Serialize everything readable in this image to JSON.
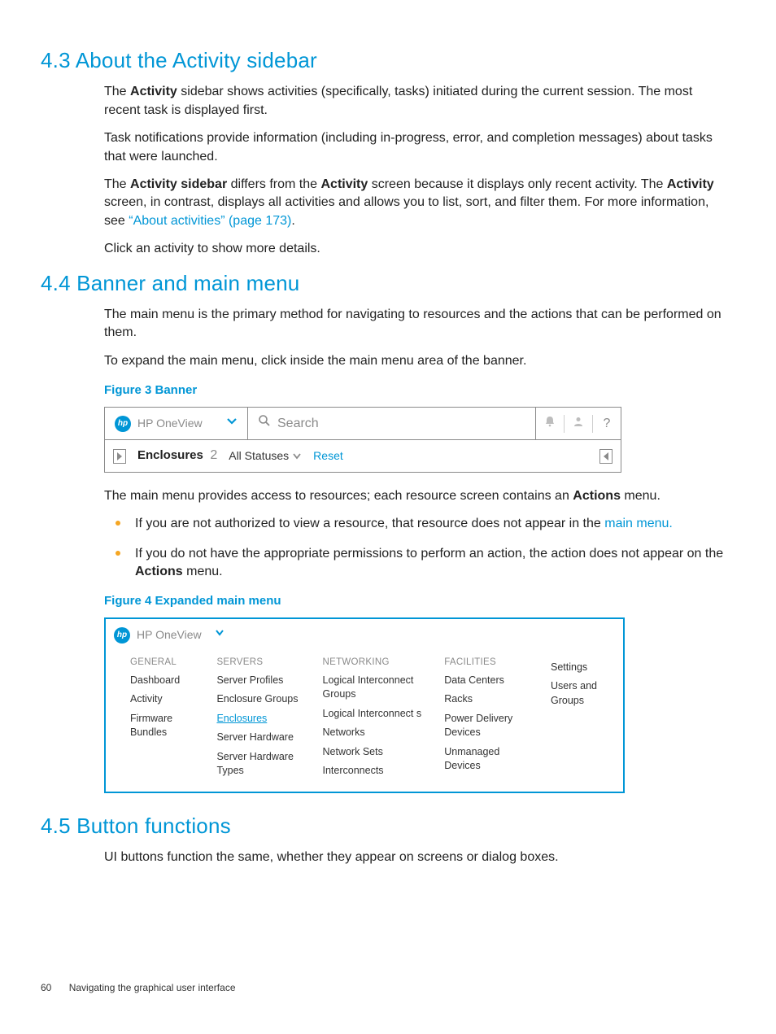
{
  "sections": {
    "s43": {
      "title": "4.3 About the Activity sidebar",
      "p1a": "The ",
      "p1b": "Activity",
      "p1c": " sidebar shows activities (specifically, tasks) initiated during the current session. The most recent task is displayed first.",
      "p2": "Task notifications provide information (including in-progress, error, and completion messages) about tasks that were launched.",
      "p3a": "The ",
      "p3b": "Activity sidebar",
      "p3c": " differs from the ",
      "p3d": "Activity",
      "p3e": " screen because it displays only recent activity. The ",
      "p3f": "Activity",
      "p3g": " screen, in contrast, displays all activities and allows you to list, sort, and filter them. For more information, see ",
      "p3link": "“About activities” (page 173)",
      "p3end": ".",
      "p4": "Click an activity to show more details."
    },
    "s44": {
      "title": "4.4 Banner and main menu",
      "p1": "The main menu is the primary method for navigating to resources and the actions that can be performed on them.",
      "p2": "To expand the main menu, click inside the main menu area of the banner.",
      "fig3": "Figure 3 Banner",
      "after_fig3_a": "The main menu provides access to resources; each resource screen contains an ",
      "after_fig3_b": "Actions",
      "after_fig3_c": " menu.",
      "b1a": "If you are not authorized to view a resource, that resource does not appear in the ",
      "b1link": "main menu.",
      "b2a": "If you do not have the appropriate permissions to perform an action, the action does not appear on the ",
      "b2b": "Actions",
      "b2c": " menu.",
      "fig4": "Figure 4 Expanded main menu"
    },
    "s45": {
      "title": "4.5 Button functions",
      "p1": "UI buttons function the same, whether they appear on screens or dialog boxes."
    }
  },
  "banner": {
    "brand": "HP OneView",
    "hp_glyph": "hp",
    "search_placeholder": "Search",
    "help_glyph": "?",
    "enclosures_label": "Enclosures",
    "enclosures_count": "2",
    "status_label": "All Statuses",
    "reset_label": "Reset",
    "accent_color": "#0096d6",
    "border_color": "#8a8a8a"
  },
  "expanded_menu": {
    "brand": "HP OneView",
    "columns": [
      {
        "head": "GENERAL",
        "items": [
          {
            "label": "Dashboard"
          },
          {
            "label": "Activity"
          },
          {
            "label": "Firmware Bundles"
          }
        ]
      },
      {
        "head": "SERVERS",
        "items": [
          {
            "label": "Server Profiles"
          },
          {
            "label": "Enclosure Groups"
          },
          {
            "label": "Enclosures",
            "active": true
          },
          {
            "label": "Server Hardware"
          },
          {
            "label": "Server Hardware Types"
          }
        ]
      },
      {
        "head": "NETWORKING",
        "items": [
          {
            "label": "Logical Interconnect Groups"
          },
          {
            "label": "Logical Interconnect s"
          },
          {
            "label": "Networks"
          },
          {
            "label": "Network Sets"
          },
          {
            "label": "Interconnects"
          }
        ]
      },
      {
        "head": "FACILITIES",
        "items": [
          {
            "label": "Data Centers"
          },
          {
            "label": "Racks"
          },
          {
            "label": "Power Delivery Devices"
          },
          {
            "label": "Unmanaged Devices"
          }
        ]
      },
      {
        "head": "",
        "items": [
          {
            "label": "Settings"
          },
          {
            "label": "Users and Groups"
          }
        ]
      }
    ]
  },
  "footer": {
    "page_number": "60",
    "chapter": "Navigating the graphical user interface"
  }
}
